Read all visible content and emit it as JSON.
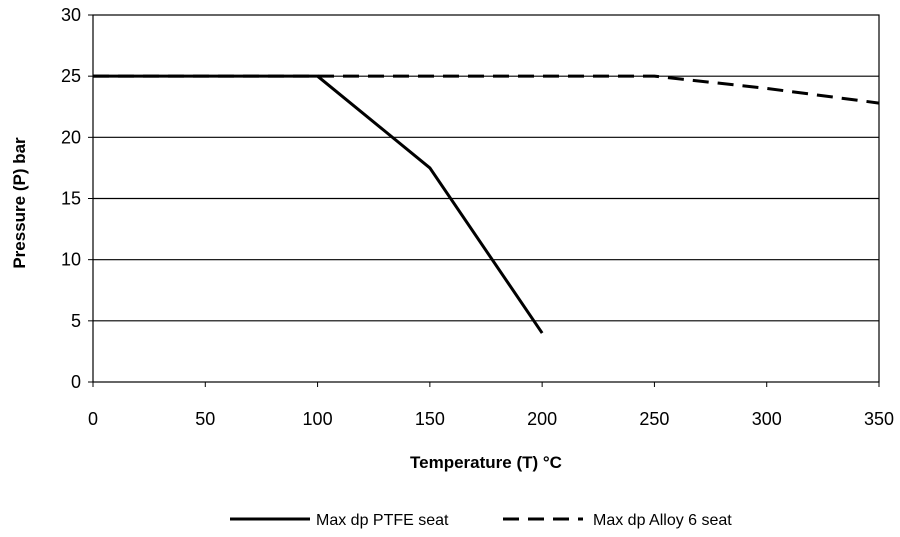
{
  "chart_data": {
    "type": "line",
    "xlabel": "Temperature (T) °C",
    "ylabel": "Pressure (P) bar",
    "xlim": [
      0,
      350
    ],
    "ylim": [
      0,
      30
    ],
    "x_ticks": [
      "0",
      "50",
      "100",
      "150",
      "200",
      "250",
      "300",
      "350"
    ],
    "y_ticks": [
      "0",
      "5",
      "10",
      "15",
      "20",
      "25",
      "30"
    ],
    "grid": "horizontal",
    "legend_position": "bottom",
    "series": [
      {
        "name": "Max dp PTFE seat",
        "style": "solid",
        "color": "#000000",
        "x": [
          0,
          100,
          150,
          200
        ],
        "y": [
          25,
          25,
          17.5,
          4
        ]
      },
      {
        "name": "Max dp Alloy 6 seat",
        "style": "dashed",
        "color": "#000000",
        "x": [
          0,
          250,
          300,
          350
        ],
        "y": [
          25,
          25,
          24,
          22.8
        ]
      }
    ]
  }
}
